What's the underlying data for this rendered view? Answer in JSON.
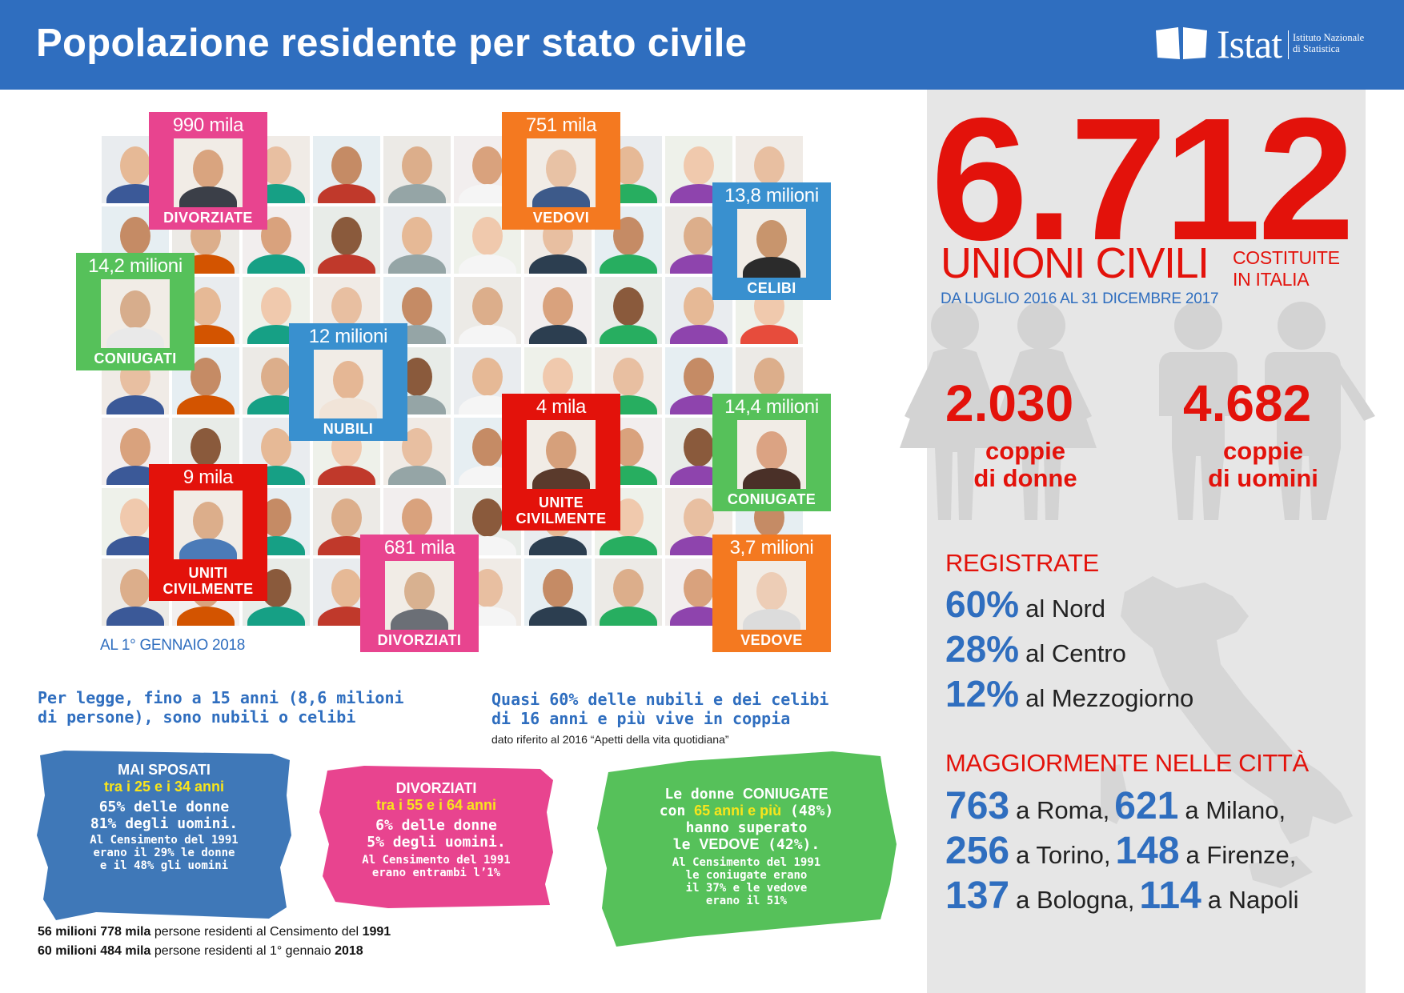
{
  "header": {
    "title": "Popolazione residente per stato civile",
    "logo_name": "Istat",
    "logo_sub_1": "Istituto Nazionale",
    "logo_sub_2": "di Statistica"
  },
  "colors": {
    "blue": "#2f6ebf",
    "red": "#e3120b",
    "pink": "#e8448f",
    "orange": "#f47920",
    "green": "#56c15a",
    "light_blue": "#3990cf",
    "panel_gray": "#e6e6e6",
    "highlight_yellow": "#f9e51b"
  },
  "cards": [
    {
      "id": "divorziate",
      "value": "990 mila",
      "label": "DIVORZIATE",
      "color": "#e8448f"
    },
    {
      "id": "vedovi",
      "value": "751 mila",
      "label": "VEDOVI",
      "color": "#f47920"
    },
    {
      "id": "celibi",
      "value": "13,8 milioni",
      "label": "CELIBI",
      "color": "#3990cf"
    },
    {
      "id": "coniugati",
      "value": "14,2 milioni",
      "label": "CONIUGATI",
      "color": "#56c15a"
    },
    {
      "id": "nubili",
      "value": "12 milioni",
      "label": "NUBILI",
      "color": "#3990cf"
    },
    {
      "id": "unite",
      "value": "4 mila",
      "label_1": "UNITE",
      "label_2": "CIVILMENTE",
      "color": "#e3120b"
    },
    {
      "id": "coniugate",
      "value": "14,4 milioni",
      "label": "CONIUGATE",
      "color": "#56c15a"
    },
    {
      "id": "uniti",
      "value": "9 mila",
      "label_1": "UNITI",
      "label_2": "CIVILMENTE",
      "color": "#e3120b"
    },
    {
      "id": "divorziati",
      "value": "681 mila",
      "label": "DIVORZIATI",
      "color": "#e8448f"
    },
    {
      "id": "vedove",
      "value": "3,7 milioni",
      "label": "VEDOVE",
      "color": "#f47920"
    }
  ],
  "date_note": "AL 1° GENNAIO 2018",
  "notes": {
    "legge_1": "Per legge, fino a 15 anni (8,6 milioni",
    "legge_2": "di persone), sono nubili o celibi",
    "coppia_1": "Quasi 60% delle nubili e dei celibi",
    "coppia_2": "di 16 anni e più vive in coppia",
    "source": "dato  riferito al 2016 “Apetti della vita quotidiana”"
  },
  "brush_blue": {
    "h": "MAI SPOSATI",
    "y": "tra i 25 e i 34 anni",
    "l1": "65% delle donne",
    "l2": "81% degli uomini.",
    "s1": "Al Censimento del 1991",
    "s2": "erano il 29% le donne",
    "s3": "e il 48% gli uomini"
  },
  "brush_pink": {
    "h": "DIVORZIATI",
    "y": "tra i 55 e i 64 anni",
    "l1": "6% delle donne",
    "l2": "5% degli uomini.",
    "s1": "Al Censimento del 1991",
    "s2": "erano entrambi l’1%"
  },
  "brush_green": {
    "l1a": "Le donne ",
    "l1b": "CONIUGATE",
    "l2a": "con ",
    "l2b": "65 anni e più",
    "l2c": " (48%)",
    "l3": "hanno superato",
    "l4a": "le ",
    "l4b": "VEDOVE",
    "l4c": " (42%).",
    "s1": "Al Censimento del 1991",
    "s2": "le coniugate erano",
    "s3": "il 37% e le vedove",
    "s4": "erano il 51%"
  },
  "footer": {
    "l1_a": "56 milioni 778 mila",
    "l1_b": " persone residenti al Censimento del ",
    "l1_c": "1991",
    "l2_a": "60 milioni 484 mila",
    "l2_b": " persone residenti al 1° gennaio ",
    "l2_c": "2018"
  },
  "unions": {
    "total": "6.712",
    "title": "UNIONI CIVILI",
    "costituite_1": "COSTITUITE",
    "costituite_2": "IN ITALIA",
    "period": "DA  LUGLIO 2016 AL 31 DICEMBRE 2017",
    "donne_num": "2.030",
    "donne_l1": "coppie",
    "donne_l2": "di donne",
    "uomini_num": "4.682",
    "uomini_l1": "coppie",
    "uomini_l2": "di uomini"
  },
  "registrate": {
    "title": "REGISTRATE",
    "rows": [
      {
        "pct": "60%",
        "area": "al Nord"
      },
      {
        "pct": "28%",
        "area": "al Centro"
      },
      {
        "pct": "12%",
        "area": "al Mezzogiorno"
      }
    ]
  },
  "citta": {
    "title": "MAGGIORMENTE NELLE CITTÀ",
    "r1": [
      {
        "n": "763",
        "c": "a Roma,"
      },
      {
        "n": "621",
        "c": "a Milano,"
      }
    ],
    "r2": [
      {
        "n": "256",
        "c": "a Torino,"
      },
      {
        "n": "148",
        "c": "a Firenze,"
      }
    ],
    "r3": [
      {
        "n": "137",
        "c": "a Bologna,"
      },
      {
        "n": "114",
        "c": "a Napoli"
      }
    ]
  }
}
